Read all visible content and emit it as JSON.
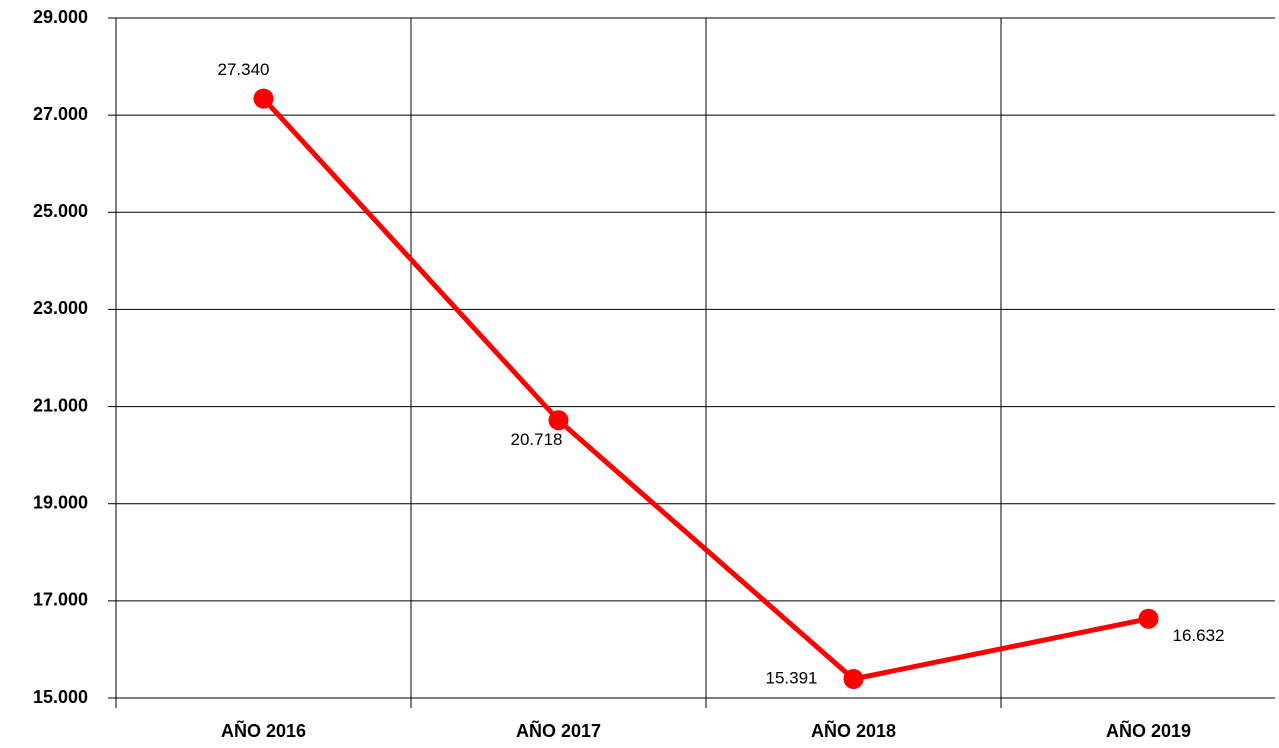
{
  "chart_data": {
    "type": "line",
    "categories": [
      "AÑO 2016",
      "AÑO 2017",
      "AÑO 2018",
      "AÑO 2019"
    ],
    "series": [
      {
        "color": "#ff0000",
        "values": [
          27340,
          20718,
          15391,
          16632
        ],
        "value_labels": [
          "27.340",
          "20.718",
          "15.391",
          "16.632"
        ]
      }
    ],
    "ylim": [
      15000,
      29000
    ],
    "yticks": [
      {
        "value": 15000,
        "label": "15.000"
      },
      {
        "value": 17000,
        "label": "17.000"
      },
      {
        "value": 19000,
        "label": "19.000"
      },
      {
        "value": 21000,
        "label": "21.000"
      },
      {
        "value": 23000,
        "label": "23.000"
      },
      {
        "value": 25000,
        "label": "25.000"
      },
      {
        "value": 27000,
        "label": "27.000"
      },
      {
        "value": 29000,
        "label": "29.000"
      }
    ],
    "grid": true
  }
}
